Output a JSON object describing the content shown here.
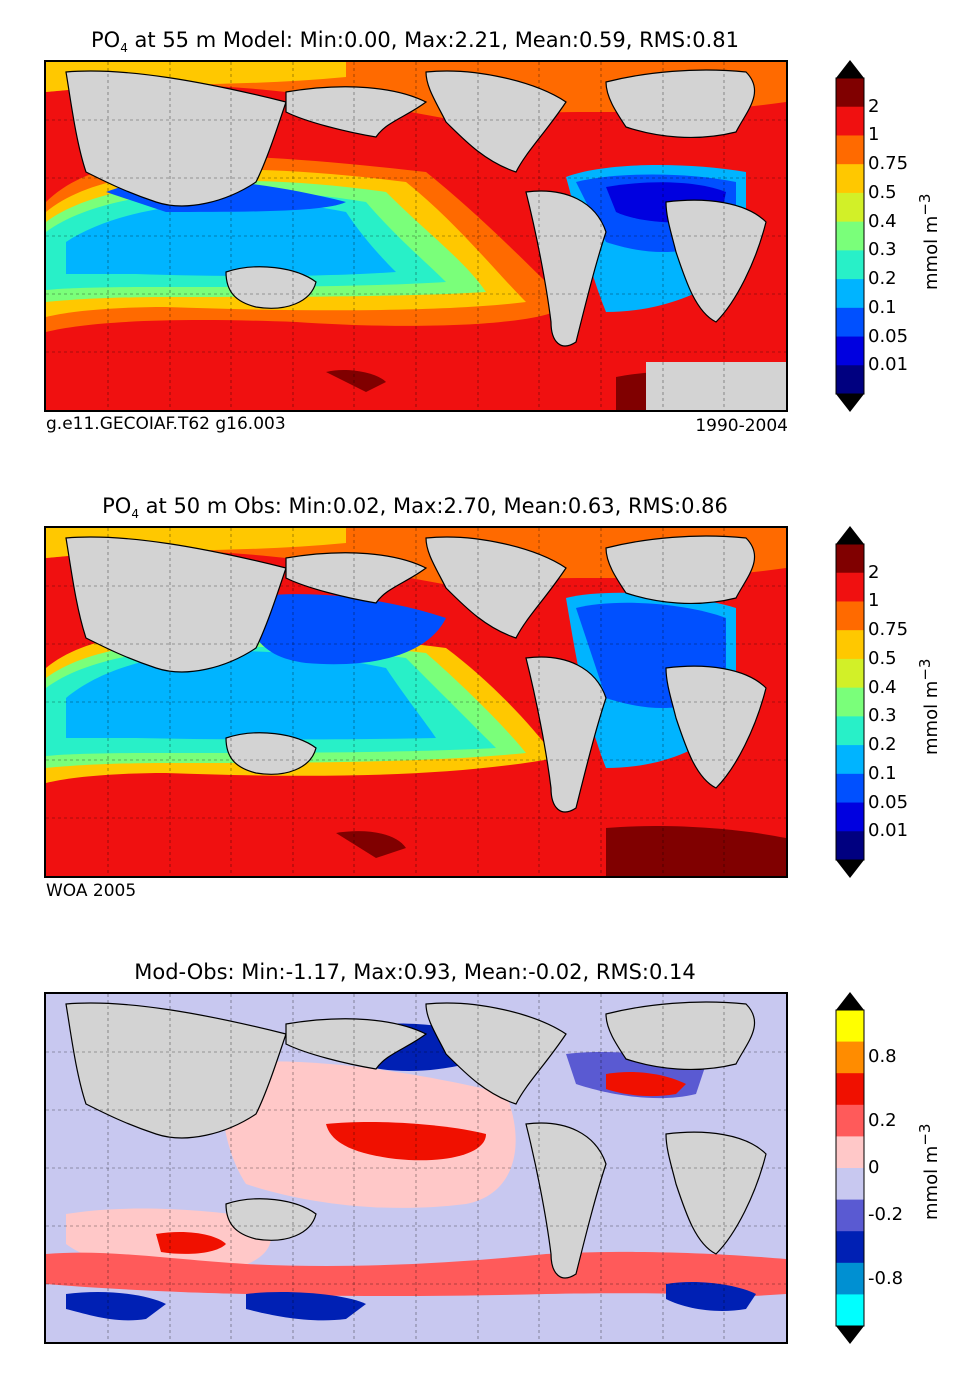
{
  "panels": [
    {
      "title_prefix": "PO",
      "title_sub": "4",
      "title_rest": " at 55 m Model: Min:0.00, Max:2.21, Mean:0.59, RMS:0.81",
      "footer_left": "g.e11.GECOIAF.T62 g16.003",
      "footer_right": "1990-2004",
      "colorbar": {
        "unit": "mmol m",
        "unit_sup": "−3",
        "tick_labels": [
          "2",
          "1",
          "0.75",
          "0.5",
          "0.4",
          "0.3",
          "0.2",
          "0.1",
          "0.05",
          "0.01"
        ],
        "colors": [
          "#800000",
          "#f01010",
          "#ff6a00",
          "#ffc800",
          "#d2f028",
          "#7aff7a",
          "#28f0c8",
          "#00b4ff",
          "#0050ff",
          "#0000e0",
          "#000080"
        ]
      }
    },
    {
      "title_prefix": "PO",
      "title_sub": "4",
      "title_rest": " at 50 m Obs: Min:0.02, Max:2.70, Mean:0.63, RMS:0.86",
      "footer_left": "WOA 2005",
      "footer_right": "",
      "colorbar": {
        "unit": "mmol m",
        "unit_sup": "−3",
        "tick_labels": [
          "2",
          "1",
          "0.75",
          "0.5",
          "0.4",
          "0.3",
          "0.2",
          "0.1",
          "0.05",
          "0.01"
        ],
        "colors": [
          "#800000",
          "#f01010",
          "#ff6a00",
          "#ffc800",
          "#d2f028",
          "#7aff7a",
          "#28f0c8",
          "#00b4ff",
          "#0050ff",
          "#0000e0",
          "#000080"
        ]
      }
    },
    {
      "title_prefix": "",
      "title_sub": "",
      "title_rest": "Mod-Obs: Min:-1.17, Max:0.93, Mean:-0.02, RMS:0.14",
      "footer_left": "",
      "footer_right": "",
      "colorbar": {
        "unit": "mmol m",
        "unit_sup": "−3",
        "tick_labels": [
          "0.8",
          "0.2",
          "0",
          "-0.2",
          "-0.8"
        ],
        "colors": [
          "#ffff00",
          "#ff8c00",
          "#f01000",
          "#ff5a5a",
          "#ffc8c8",
          "#c8c8f0",
          "#5a5ad2",
          "#0020b4",
          "#0090d2",
          "#00ffff"
        ]
      }
    }
  ],
  "land_color": "#d3d3d3"
}
